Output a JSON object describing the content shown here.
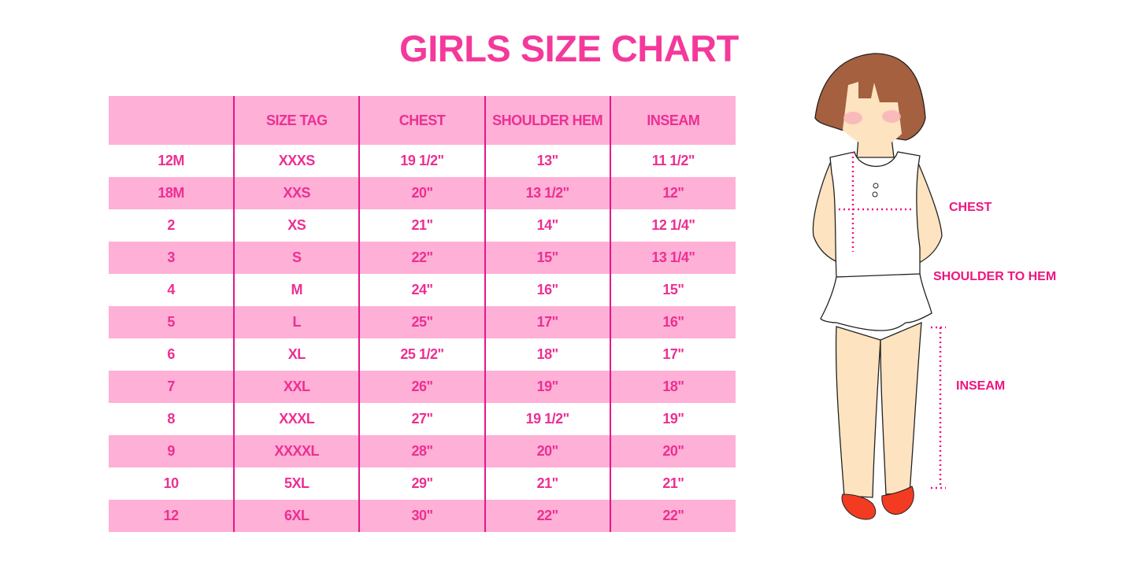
{
  "title": "GIRLS SIZE CHART",
  "table": {
    "headers": [
      "",
      "SIZE TAG",
      "CHEST",
      "SHOULDER HEM",
      "INSEAM"
    ],
    "rows": [
      [
        "12M",
        "XXXS",
        "19 1/2\"",
        "13\"",
        "11 1/2\""
      ],
      [
        "18M",
        "XXS",
        "20\"",
        "13 1/2\"",
        "12\""
      ],
      [
        "2",
        "XS",
        "21\"",
        "14\"",
        "12 1/4\""
      ],
      [
        "3",
        "S",
        "22\"",
        "15\"",
        "13 1/4\""
      ],
      [
        "4",
        "M",
        "24\"",
        "16\"",
        "15\""
      ],
      [
        "5",
        "L",
        "25\"",
        "17\"",
        "16\""
      ],
      [
        "6",
        "XL",
        "25 1/2\"",
        "18\"",
        "17\""
      ],
      [
        "7",
        "XXL",
        "26\"",
        "19\"",
        "18\""
      ],
      [
        "8",
        "XXXL",
        "27\"",
        "19 1/2\"",
        "19\""
      ],
      [
        "9",
        "XXXXL",
        "28\"",
        "20\"",
        "20\""
      ],
      [
        "10",
        "5XL",
        "29\"",
        "21\"",
        "21\""
      ],
      [
        "12",
        "6XL",
        "30\"",
        "22\"",
        "22\""
      ]
    ]
  },
  "illustration": {
    "labels": {
      "chest": "CHEST",
      "shoulder_to_hem": "SHOULDER TO HEM",
      "inseam": "INSEAM"
    }
  },
  "colors": {
    "accent": "#f4399b",
    "row_pink": "#feb0d6",
    "divider": "#e5178a"
  }
}
